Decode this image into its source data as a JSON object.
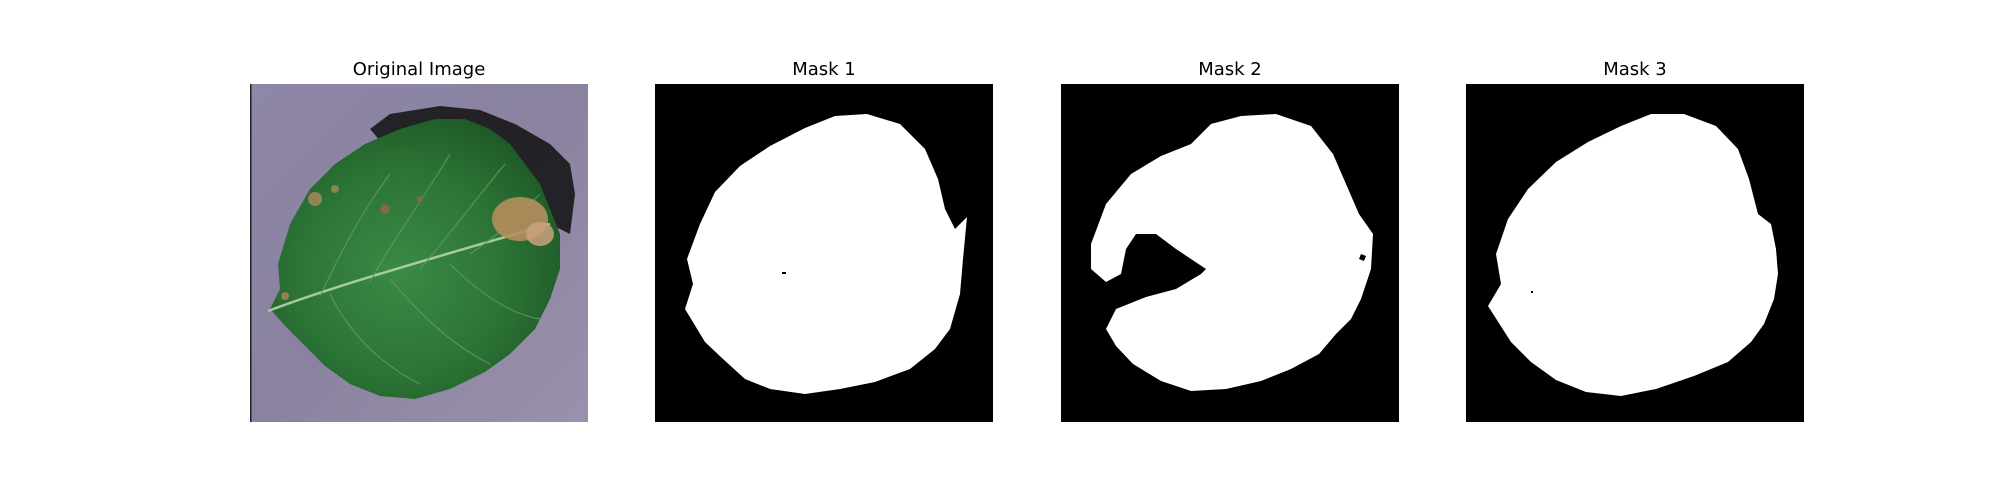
{
  "panels": [
    {
      "title": "Original Image",
      "kind": "photo"
    },
    {
      "title": "Mask 1",
      "kind": "mask"
    },
    {
      "title": "Mask 2",
      "kind": "mask"
    },
    {
      "title": "Mask 3",
      "kind": "mask"
    }
  ],
  "colors": {
    "background_purple": "#8e84a3",
    "leaf_green": "#2f7a3a",
    "leaf_dark": "#1f5a2a",
    "lesion_brown": "#b08a5a",
    "mask_black": "#000000",
    "mask_white": "#ffffff"
  }
}
